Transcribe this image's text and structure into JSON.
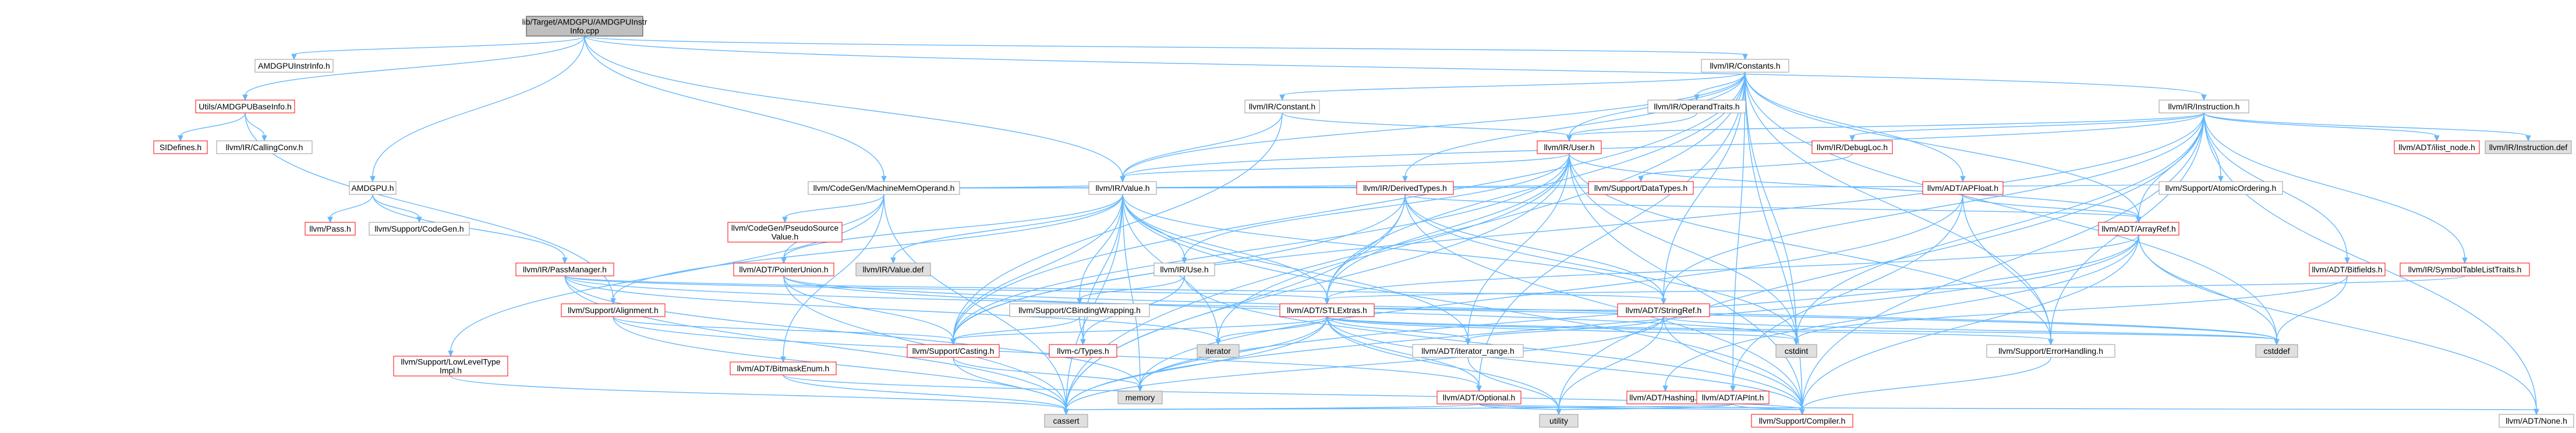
{
  "nodes": [
    {
      "id": "root",
      "lines": [
        "lib/Target/AMDGPU/AMDGPUInstr",
        "Info.cpp"
      ],
      "style": "root"
    },
    {
      "id": "instrinfo_h",
      "lines": [
        "AMDGPUInstrInfo.h"
      ],
      "style": "normal"
    },
    {
      "id": "utils_baseinfo",
      "lines": [
        "Utils/AMDGPUBaseInfo.h"
      ],
      "style": "red"
    },
    {
      "id": "sidefines",
      "lines": [
        "SIDefines.h"
      ],
      "style": "red"
    },
    {
      "id": "callingconv",
      "lines": [
        "llvm/IR/CallingConv.h"
      ],
      "style": "normal"
    },
    {
      "id": "amdgpu_h",
      "lines": [
        "AMDGPU.h"
      ],
      "style": "normal"
    },
    {
      "id": "pass_h",
      "lines": [
        "llvm/Pass.h"
      ],
      "style": "red"
    },
    {
      "id": "codegen_h",
      "lines": [
        "llvm/Support/CodeGen.h"
      ],
      "style": "normal"
    },
    {
      "id": "passmanager",
      "lines": [
        "llvm/IR/PassManager.h"
      ],
      "style": "red"
    },
    {
      "id": "mmo",
      "lines": [
        "llvm/CodeGen/MachineMemOperand.h"
      ],
      "style": "normal"
    },
    {
      "id": "pseudosrc",
      "lines": [
        "llvm/CodeGen/PseudoSource",
        "Value.h"
      ],
      "style": "red"
    },
    {
      "id": "lowleveltype",
      "lines": [
        "llvm/Support/LowLevelType",
        "Impl.h"
      ],
      "style": "red"
    },
    {
      "id": "bitmaskenum",
      "lines": [
        "llvm/ADT/BitmaskEnum.h"
      ],
      "style": "red"
    },
    {
      "id": "constants",
      "lines": [
        "llvm/IR/Constants.h"
      ],
      "style": "normal"
    },
    {
      "id": "constant",
      "lines": [
        "llvm/IR/Constant.h"
      ],
      "style": "normal"
    },
    {
      "id": "operandtraits",
      "lines": [
        "llvm/IR/OperandTraits.h"
      ],
      "style": "normal"
    },
    {
      "id": "instruction",
      "lines": [
        "llvm/IR/Instruction.h"
      ],
      "style": "normal"
    },
    {
      "id": "user",
      "lines": [
        "llvm/IR/User.h"
      ],
      "style": "red"
    },
    {
      "id": "value",
      "lines": [
        "llvm/IR/Value.h"
      ],
      "style": "normal"
    },
    {
      "id": "derivedtypes",
      "lines": [
        "llvm/IR/DerivedTypes.h"
      ],
      "style": "red"
    },
    {
      "id": "debugloc",
      "lines": [
        "llvm/IR/DebugLoc.h"
      ],
      "style": "red"
    },
    {
      "id": "datatypes",
      "lines": [
        "llvm/Support/DataTypes.h"
      ],
      "style": "red"
    },
    {
      "id": "apfloat",
      "lines": [
        "llvm/ADT/APFloat.h"
      ],
      "style": "red"
    },
    {
      "id": "ilist_node",
      "lines": [
        "llvm/ADT/ilist_node.h"
      ],
      "style": "red"
    },
    {
      "id": "instruction_def",
      "lines": [
        "llvm/IR/Instruction.def"
      ],
      "style": "gray"
    },
    {
      "id": "atomicordering",
      "lines": [
        "llvm/Support/AtomicOrdering.h"
      ],
      "style": "normal"
    },
    {
      "id": "arrayref",
      "lines": [
        "llvm/ADT/ArrayRef.h"
      ],
      "style": "red"
    },
    {
      "id": "bitfields",
      "lines": [
        "llvm/ADT/Bitfields.h"
      ],
      "style": "red"
    },
    {
      "id": "symtraits",
      "lines": [
        "llvm/IR/SymbolTableListTraits.h"
      ],
      "style": "red"
    },
    {
      "id": "pointerunion",
      "lines": [
        "llvm/ADT/PointerUnion.h"
      ],
      "style": "red"
    },
    {
      "id": "value_def",
      "lines": [
        "llvm/IR/Value.def"
      ],
      "style": "gray"
    },
    {
      "id": "use",
      "lines": [
        "llvm/IR/Use.h"
      ],
      "style": "normal"
    },
    {
      "id": "cbinding",
      "lines": [
        "llvm/Support/CBindingWrapping.h"
      ],
      "style": "normal"
    },
    {
      "id": "ctypes",
      "lines": [
        "llvm-c/Types.h"
      ],
      "style": "red"
    },
    {
      "id": "alignment",
      "lines": [
        "llvm/Support/Alignment.h"
      ],
      "style": "red"
    },
    {
      "id": "casting",
      "lines": [
        "llvm/Support/Casting.h"
      ],
      "style": "red"
    },
    {
      "id": "stlextras",
      "lines": [
        "llvm/ADT/STLExtras.h"
      ],
      "style": "red"
    },
    {
      "id": "iterator",
      "lines": [
        "iterator"
      ],
      "style": "gray"
    },
    {
      "id": "stringref",
      "lines": [
        "llvm/ADT/StringRef.h"
      ],
      "style": "red"
    },
    {
      "id": "iter_range",
      "lines": [
        "llvm/ADT/iterator_range.h"
      ],
      "style": "normal"
    },
    {
      "id": "cstdint",
      "lines": [
        "cstdint"
      ],
      "style": "gray"
    },
    {
      "id": "errorhandling",
      "lines": [
        "llvm/Support/ErrorHandling.h"
      ],
      "style": "normal"
    },
    {
      "id": "cstddef",
      "lines": [
        "cstddef"
      ],
      "style": "gray"
    },
    {
      "id": "memory",
      "lines": [
        "memory"
      ],
      "style": "gray"
    },
    {
      "id": "optional",
      "lines": [
        "llvm/ADT/Optional.h"
      ],
      "style": "red"
    },
    {
      "id": "hashing",
      "lines": [
        "llvm/ADT/Hashing.h"
      ],
      "style": "red"
    },
    {
      "id": "apint",
      "lines": [
        "llvm/ADT/APInt.h"
      ],
      "style": "red"
    },
    {
      "id": "cassert",
      "lines": [
        "cassert"
      ],
      "style": "gray"
    },
    {
      "id": "utility",
      "lines": [
        "utility"
      ],
      "style": "gray"
    },
    {
      "id": "compiler",
      "lines": [
        "llvm/Support/Compiler.h"
      ],
      "style": "red"
    },
    {
      "id": "none_h",
      "lines": [
        "llvm/ADT/None.h"
      ],
      "style": "normal"
    }
  ],
  "edges": [
    [
      "root",
      "instrinfo_h"
    ],
    [
      "root",
      "utils_baseinfo"
    ],
    [
      "root",
      "amdgpu_h"
    ],
    [
      "root",
      "mmo"
    ],
    [
      "root",
      "constants"
    ],
    [
      "root",
      "value"
    ],
    [
      "root",
      "instruction"
    ],
    [
      "utils_baseinfo",
      "sidefines"
    ],
    [
      "utils_baseinfo",
      "callingconv"
    ],
    [
      "utils_baseinfo",
      "alignment"
    ],
    [
      "amdgpu_h",
      "pass_h"
    ],
    [
      "amdgpu_h",
      "codegen_h"
    ],
    [
      "amdgpu_h",
      "passmanager"
    ],
    [
      "passmanager",
      "stlextras"
    ],
    [
      "passmanager",
      "stringref"
    ],
    [
      "passmanager",
      "cassert"
    ],
    [
      "passmanager",
      "iterator"
    ],
    [
      "passmanager",
      "memory"
    ],
    [
      "passmanager",
      "cstddef"
    ],
    [
      "mmo",
      "pseudosrc"
    ],
    [
      "mmo",
      "bitmaskenum"
    ],
    [
      "mmo",
      "pointerunion"
    ],
    [
      "mmo",
      "lowleveltype"
    ],
    [
      "mmo",
      "value"
    ],
    [
      "mmo",
      "derivedtypes"
    ],
    [
      "mmo",
      "datatypes"
    ],
    [
      "mmo",
      "atomicordering"
    ],
    [
      "mmo",
      "cassert"
    ],
    [
      "constants",
      "constant"
    ],
    [
      "constants",
      "operandtraits"
    ],
    [
      "constants",
      "user"
    ],
    [
      "constants",
      "derivedtypes"
    ],
    [
      "constants",
      "apfloat"
    ],
    [
      "constants",
      "apint"
    ],
    [
      "constants",
      "stlextras"
    ],
    [
      "constants",
      "arrayref"
    ],
    [
      "constants",
      "stringref"
    ],
    [
      "constants",
      "casting"
    ],
    [
      "constants",
      "compiler"
    ],
    [
      "constants",
      "errorhandling"
    ],
    [
      "constants",
      "cstddef"
    ],
    [
      "constants",
      "cstdint"
    ],
    [
      "constants",
      "cassert"
    ],
    [
      "constants",
      "optional"
    ],
    [
      "constants",
      "value"
    ],
    [
      "constant",
      "user"
    ],
    [
      "constant",
      "value"
    ],
    [
      "constant",
      "casting"
    ],
    [
      "operandtraits",
      "user"
    ],
    [
      "instruction",
      "user"
    ],
    [
      "instruction",
      "ilist_node"
    ],
    [
      "instruction",
      "instruction_def"
    ],
    [
      "instruction",
      "debugloc"
    ],
    [
      "instruction",
      "atomicordering"
    ],
    [
      "instruction",
      "arrayref"
    ],
    [
      "instruction",
      "bitfields"
    ],
    [
      "instruction",
      "symtraits"
    ],
    [
      "instruction",
      "stringref"
    ],
    [
      "instruction",
      "cstdint"
    ],
    [
      "instruction",
      "utility"
    ],
    [
      "instruction",
      "value"
    ],
    [
      "instruction",
      "none_h"
    ],
    [
      "instruction",
      "compiler"
    ],
    [
      "instruction",
      "errorhandling"
    ],
    [
      "instruction",
      "casting"
    ],
    [
      "user",
      "use"
    ],
    [
      "user",
      "value"
    ],
    [
      "user",
      "casting"
    ],
    [
      "user",
      "arrayref"
    ],
    [
      "user",
      "iter_range"
    ],
    [
      "user",
      "stlextras"
    ],
    [
      "user",
      "compiler"
    ],
    [
      "user",
      "errorhandling"
    ],
    [
      "user",
      "cassert"
    ],
    [
      "user",
      "cstdint"
    ],
    [
      "user",
      "iterator"
    ],
    [
      "value",
      "use"
    ],
    [
      "value",
      "value_def"
    ],
    [
      "value",
      "pointerunion"
    ],
    [
      "value",
      "cbinding"
    ],
    [
      "value",
      "ctypes"
    ],
    [
      "value",
      "alignment"
    ],
    [
      "value",
      "casting"
    ],
    [
      "value",
      "stlextras"
    ],
    [
      "value",
      "stringref"
    ],
    [
      "value",
      "iter_range"
    ],
    [
      "value",
      "compiler"
    ],
    [
      "value",
      "cassert"
    ],
    [
      "value",
      "iterator"
    ],
    [
      "value",
      "memory"
    ],
    [
      "derivedtypes",
      "stlextras"
    ],
    [
      "derivedtypes",
      "stringref"
    ],
    [
      "derivedtypes",
      "casting"
    ],
    [
      "derivedtypes",
      "compiler"
    ],
    [
      "derivedtypes",
      "cassert"
    ],
    [
      "derivedtypes",
      "cstdint"
    ],
    [
      "derivedtypes",
      "arrayref"
    ],
    [
      "debugloc",
      "datatypes"
    ],
    [
      "apfloat",
      "arrayref"
    ],
    [
      "apfloat",
      "apint"
    ],
    [
      "apfloat",
      "errorhandling"
    ],
    [
      "apfloat",
      "memory"
    ],
    [
      "arrayref",
      "hashing"
    ],
    [
      "arrayref",
      "none_h"
    ],
    [
      "arrayref",
      "stlextras"
    ],
    [
      "arrayref",
      "compiler"
    ],
    [
      "arrayref",
      "cassert"
    ],
    [
      "arrayref",
      "cstddef"
    ],
    [
      "arrayref",
      "memory"
    ],
    [
      "bitfields",
      "cstdint"
    ],
    [
      "bitfields",
      "cstddef"
    ],
    [
      "symtraits",
      "stlextras"
    ],
    [
      "pointerunion",
      "casting"
    ],
    [
      "pointerunion",
      "cassert"
    ],
    [
      "pointerunion",
      "cstddef"
    ],
    [
      "pointerunion",
      "cstdint"
    ],
    [
      "use",
      "cbinding"
    ],
    [
      "use",
      "ctypes"
    ],
    [
      "use",
      "compiler"
    ],
    [
      "cbinding",
      "casting"
    ],
    [
      "cbinding",
      "ctypes"
    ],
    [
      "alignment",
      "optional"
    ],
    [
      "alignment",
      "cassert"
    ],
    [
      "alignment",
      "casting"
    ],
    [
      "casting",
      "cassert"
    ],
    [
      "casting",
      "memory"
    ],
    [
      "casting",
      "type_traits_dummy"
    ],
    [
      "stlextras",
      "casting"
    ],
    [
      "stlextras",
      "iter_range"
    ],
    [
      "stlextras",
      "iterator"
    ],
    [
      "stlextras",
      "optional"
    ],
    [
      "stlextras",
      "cassert"
    ],
    [
      "stlextras",
      "utility"
    ],
    [
      "stlextras",
      "memory"
    ],
    [
      "stlextras",
      "cstddef"
    ],
    [
      "stlextras",
      "cstdint"
    ],
    [
      "stlextras",
      "errorhandling"
    ],
    [
      "stlextras",
      "compiler"
    ],
    [
      "stringref",
      "stlextras"
    ],
    [
      "stringref",
      "iter_range"
    ],
    [
      "stringref",
      "compiler"
    ],
    [
      "stringref",
      "cassert"
    ],
    [
      "stringref",
      "cstddef"
    ],
    [
      "stringref",
      "utility"
    ],
    [
      "iter_range",
      "utility"
    ],
    [
      "errorhandling",
      "compiler"
    ],
    [
      "optional",
      "compiler"
    ],
    [
      "optional",
      "cassert"
    ],
    [
      "optional",
      "utility"
    ],
    [
      "optional",
      "none_h"
    ],
    [
      "apint",
      "compiler"
    ],
    [
      "apint",
      "cassert"
    ],
    [
      "apint",
      "utility"
    ],
    [
      "bitmaskenum",
      "cassert"
    ],
    [
      "bitmaskenum",
      "compiler"
    ],
    [
      "lowleveltype",
      "cassert"
    ]
  ]
}
